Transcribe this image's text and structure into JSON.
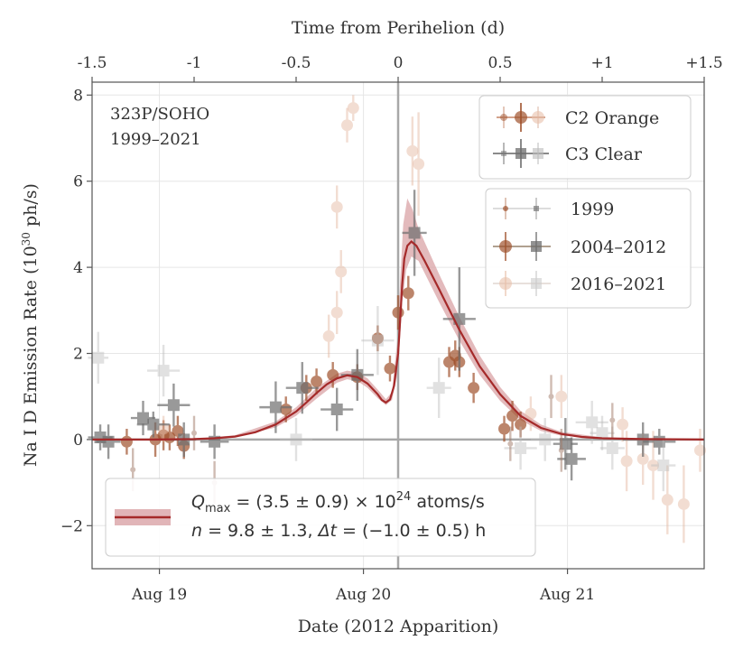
{
  "chart_data": {
    "type": "scatter",
    "title": "",
    "annotation": [
      "323P/SOHO",
      "1999–2021"
    ],
    "xlabel_bottom": "Date (2012 Apparition)",
    "xlabel_top": "Time from Perihelion (d)",
    "ylabel": "Na I D Emission Rate (10³⁰ ph/s)",
    "xlim": [
      -1.5,
      1.5
    ],
    "ylim": [
      -3.0,
      8.3
    ],
    "x_units": "days from perihelion",
    "top_ticks": [
      {
        "x": -1.5,
        "label": "-1.5"
      },
      {
        "x": -1.0,
        "label": "-1"
      },
      {
        "x": -0.5,
        "label": "-0.5"
      },
      {
        "x": 0,
        "label": "0"
      },
      {
        "x": 0.5,
        "label": "0.5"
      },
      {
        "x": 1.0,
        "label": "+1"
      },
      {
        "x": 1.5,
        "label": "+1.5"
      }
    ],
    "bottom_ticks": [
      {
        "x": -1.17,
        "label": "Aug 19"
      },
      {
        "x": -0.17,
        "label": "Aug 20"
      },
      {
        "x": 0.83,
        "label": "Aug 21"
      }
    ],
    "y_ticks": [
      {
        "y": -2,
        "label": "−2"
      },
      {
        "y": 0,
        "label": "0"
      },
      {
        "y": 2,
        "label": "2"
      },
      {
        "y": 4,
        "label": "4"
      },
      {
        "y": 6,
        "label": "6"
      },
      {
        "y": 8,
        "label": "8"
      }
    ],
    "perihelion_line_x": 0,
    "zero_line_y": 0,
    "colors": {
      "c2_orange": "#a0522d",
      "c3_clear": "#6e6e6e",
      "fit_line": "#a52a2a",
      "fit_band": "#d9a3a6",
      "ref_line": "#a8a8a8",
      "grid": "#e6e6e6",
      "axis": "#555555"
    },
    "legend_instruments": [
      {
        "label": "C2 Orange",
        "marker": "circle",
        "series": "c2_orange"
      },
      {
        "label": "C3 Clear",
        "marker": "square",
        "series": "c3_clear"
      }
    ],
    "legend_years": [
      {
        "label": "1999",
        "style": "small"
      },
      {
        "label": "2004–2012",
        "style": "solid"
      },
      {
        "label": "2016–2021",
        "style": "faint"
      }
    ],
    "fit_label_line1": "Q_max = (3.5 ± 0.9) × 10^24 atoms/s",
    "fit_label_line2": "n = 9.8 ± 1.3, Δt = (−1.0 ± 0.5) h",
    "fit_q_prefix": "Q",
    "fit_q_sub": "max",
    "fit_q_mid": " = (3.5 ± 0.9) × 10",
    "fit_q_exp": "24",
    "fit_q_suffix": " atoms/s",
    "fit_n_label": "n",
    "fit_n_mid": " = 9.8 ± 1.3, ",
    "fit_dt_label": "Δt",
    "fit_dt_mid": " = (−1.0 ± 0.5) h",
    "fit_curve": [
      [
        -1.5,
        0.0
      ],
      [
        -1.2,
        0.0
      ],
      [
        -1.0,
        0.01
      ],
      [
        -0.9,
        0.03
      ],
      [
        -0.8,
        0.07
      ],
      [
        -0.7,
        0.17
      ],
      [
        -0.6,
        0.35
      ],
      [
        -0.5,
        0.65
      ],
      [
        -0.45,
        0.86
      ],
      [
        -0.4,
        1.08
      ],
      [
        -0.35,
        1.28
      ],
      [
        -0.3,
        1.42
      ],
      [
        -0.25,
        1.49
      ],
      [
        -0.2,
        1.45
      ],
      [
        -0.15,
        1.3
      ],
      [
        -0.1,
        1.05
      ],
      [
        -0.08,
        0.92
      ],
      [
        -0.06,
        0.86
      ],
      [
        -0.04,
        0.93
      ],
      [
        -0.02,
        1.25
      ],
      [
        0.0,
        2.0
      ],
      [
        0.01,
        2.8
      ],
      [
        0.02,
        3.6
      ],
      [
        0.03,
        4.2
      ],
      [
        0.045,
        4.5
      ],
      [
        0.065,
        4.6
      ],
      [
        0.09,
        4.5
      ],
      [
        0.13,
        4.15
      ],
      [
        0.2,
        3.5
      ],
      [
        0.3,
        2.55
      ],
      [
        0.4,
        1.7
      ],
      [
        0.5,
        1.05
      ],
      [
        0.6,
        0.55
      ],
      [
        0.7,
        0.27
      ],
      [
        0.8,
        0.13
      ],
      [
        0.9,
        0.06
      ],
      [
        1.0,
        0.03
      ],
      [
        1.2,
        0.01
      ],
      [
        1.5,
        0.0
      ]
    ],
    "fit_band_lower": [
      [
        -1.5,
        0.0
      ],
      [
        -1.0,
        0.0
      ],
      [
        -0.8,
        0.05
      ],
      [
        -0.6,
        0.28
      ],
      [
        -0.5,
        0.55
      ],
      [
        -0.4,
        0.95
      ],
      [
        -0.3,
        1.32
      ],
      [
        -0.25,
        1.4
      ],
      [
        -0.2,
        1.36
      ],
      [
        -0.15,
        1.2
      ],
      [
        -0.1,
        0.96
      ],
      [
        -0.06,
        0.8
      ],
      [
        -0.03,
        0.92
      ],
      [
        0.0,
        1.6
      ],
      [
        0.02,
        3.2
      ],
      [
        0.04,
        3.95
      ],
      [
        0.065,
        4.25
      ],
      [
        0.1,
        4.15
      ],
      [
        0.2,
        3.2
      ],
      [
        0.3,
        2.3
      ],
      [
        0.4,
        1.5
      ],
      [
        0.5,
        0.9
      ],
      [
        0.6,
        0.45
      ],
      [
        0.7,
        0.2
      ],
      [
        0.8,
        0.09
      ],
      [
        1.0,
        0.02
      ],
      [
        1.5,
        0.0
      ]
    ],
    "fit_band_upper": [
      [
        -1.5,
        0.0
      ],
      [
        -1.0,
        0.02
      ],
      [
        -0.8,
        0.1
      ],
      [
        -0.6,
        0.42
      ],
      [
        -0.5,
        0.75
      ],
      [
        -0.4,
        1.2
      ],
      [
        -0.3,
        1.53
      ],
      [
        -0.25,
        1.6
      ],
      [
        -0.2,
        1.56
      ],
      [
        -0.15,
        1.42
      ],
      [
        -0.1,
        1.16
      ],
      [
        -0.06,
        0.94
      ],
      [
        -0.03,
        1.1
      ],
      [
        0.0,
        2.5
      ],
      [
        0.01,
        3.7
      ],
      [
        0.025,
        5.0
      ],
      [
        0.045,
        5.6
      ],
      [
        0.07,
        5.35
      ],
      [
        0.1,
        4.9
      ],
      [
        0.2,
        3.85
      ],
      [
        0.3,
        2.85
      ],
      [
        0.4,
        1.95
      ],
      [
        0.5,
        1.22
      ],
      [
        0.6,
        0.67
      ],
      [
        0.7,
        0.35
      ],
      [
        0.8,
        0.18
      ],
      [
        1.0,
        0.05
      ],
      [
        1.5,
        0.0
      ]
    ],
    "series": [
      {
        "name": "C2 Orange 2004–2012",
        "instrument": "c2",
        "group": "main",
        "points": [
          [
            -1.33,
            -0.05,
            0.3
          ],
          [
            -1.19,
            0.0,
            0.4
          ],
          [
            -1.15,
            0.1,
            0.35
          ],
          [
            -1.12,
            0.05,
            0.3
          ],
          [
            -1.08,
            0.2,
            0.35
          ],
          [
            -1.05,
            -0.15,
            0.3
          ],
          [
            -0.55,
            0.7,
            0.3
          ],
          [
            -0.45,
            1.2,
            0.3
          ],
          [
            -0.4,
            1.35,
            0.3
          ],
          [
            -0.32,
            1.5,
            0.3
          ],
          [
            -0.2,
            1.45,
            0.3
          ],
          [
            -0.1,
            2.35,
            0.3
          ],
          [
            -0.04,
            1.65,
            0.3
          ],
          [
            0.0,
            2.95,
            0.4
          ],
          [
            0.05,
            3.4,
            0.4
          ],
          [
            0.25,
            1.8,
            0.35
          ],
          [
            0.28,
            1.95,
            0.35
          ],
          [
            0.3,
            1.8,
            0.35
          ],
          [
            0.37,
            1.2,
            0.35
          ],
          [
            0.56,
            0.55,
            0.35
          ],
          [
            0.52,
            0.25,
            0.3
          ],
          [
            0.6,
            0.35,
            0.3
          ]
        ]
      },
      {
        "name": "C2 Orange 2016–2021",
        "instrument": "c2",
        "group": "faint",
        "points": [
          [
            -0.22,
            7.7,
            0.3
          ],
          [
            -0.25,
            7.3,
            0.4
          ],
          [
            -0.3,
            5.4,
            0.5
          ],
          [
            -0.28,
            3.9,
            0.5
          ],
          [
            -0.3,
            2.95,
            0.5
          ],
          [
            -0.34,
            2.4,
            0.5
          ],
          [
            0.07,
            6.7,
            0.8
          ],
          [
            0.1,
            6.4,
            1.2
          ],
          [
            -1.15,
            0.25,
            0.3
          ],
          [
            0.65,
            0.6,
            0.4
          ],
          [
            0.8,
            1.0,
            0.5
          ],
          [
            1.1,
            0.35,
            0.4
          ],
          [
            1.2,
            -0.45,
            0.6
          ],
          [
            1.25,
            -0.6,
            0.8
          ],
          [
            1.32,
            -1.4,
            0.8
          ],
          [
            1.4,
            -1.5,
            0.9
          ],
          [
            1.48,
            -0.25,
            0.5
          ],
          [
            1.12,
            -0.5,
            0.7
          ]
        ]
      },
      {
        "name": "C3 Clear 2004–2012",
        "instrument": "c3",
        "group": "main",
        "points": [
          [
            -1.46,
            0.05,
            0.3,
            0.06
          ],
          [
            -1.42,
            -0.05,
            0.4,
            0.06
          ],
          [
            -1.25,
            0.5,
            0.4,
            0.06
          ],
          [
            -1.2,
            0.35,
            0.3,
            0.08
          ],
          [
            -1.1,
            0.8,
            0.5,
            0.08
          ],
          [
            -1.05,
            0.0,
            0.4,
            0.06
          ],
          [
            -0.9,
            -0.05,
            0.4,
            0.07
          ],
          [
            -0.6,
            0.75,
            0.6,
            0.08
          ],
          [
            -0.47,
            1.2,
            0.6,
            0.08
          ],
          [
            -0.3,
            0.7,
            0.5,
            0.08
          ],
          [
            -0.2,
            1.5,
            0.6,
            0.08
          ],
          [
            0.08,
            4.8,
            1.0,
            0.06
          ],
          [
            0.3,
            2.8,
            1.2,
            0.08
          ],
          [
            0.82,
            -0.1,
            0.6,
            0.06
          ],
          [
            0.85,
            -0.45,
            0.5,
            0.07
          ],
          [
            1.2,
            0.0,
            0.4,
            0.1
          ],
          [
            1.28,
            -0.05,
            0.3,
            0.08
          ]
        ]
      },
      {
        "name": "C3 Clear 2016–2021",
        "instrument": "c3",
        "group": "faint",
        "points": [
          [
            -1.47,
            1.9,
            0.6,
            0.05
          ],
          [
            -1.15,
            1.6,
            0.6,
            0.08
          ],
          [
            -0.5,
            0.0,
            0.5,
            0.08
          ],
          [
            -0.1,
            2.3,
            0.8,
            0.08
          ],
          [
            0.2,
            1.2,
            0.7,
            0.06
          ],
          [
            0.6,
            -0.2,
            0.5,
            0.08
          ],
          [
            0.72,
            0.0,
            0.5,
            0.07
          ],
          [
            0.95,
            0.4,
            0.5,
            0.08
          ],
          [
            1.0,
            0.15,
            0.4,
            0.06
          ],
          [
            1.3,
            -0.6,
            0.6,
            0.06
          ],
          [
            1.05,
            -0.2,
            0.5,
            0.06
          ]
        ]
      },
      {
        "name": "1999",
        "instrument": "mixed",
        "group": "small",
        "points": [
          [
            -1.3,
            -0.7,
            0.5
          ],
          [
            -0.9,
            -1.0,
            0.5
          ],
          [
            -1.0,
            0.15,
            0.4
          ],
          [
            0.75,
            1.0,
            0.5
          ],
          [
            0.55,
            -0.1,
            0.4
          ],
          [
            1.05,
            0.45,
            0.4
          ],
          [
            0.8,
            -0.25,
            0.5
          ]
        ]
      }
    ]
  }
}
